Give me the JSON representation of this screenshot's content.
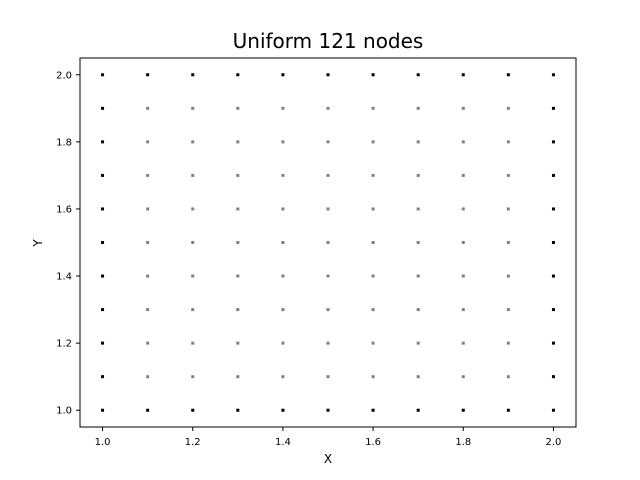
{
  "chart_data": {
    "type": "scatter",
    "title": "Uniform 121 nodes",
    "xlabel": "X",
    "ylabel": "Y",
    "xlim": [
      0.95,
      2.05
    ],
    "ylim": [
      0.95,
      2.05
    ],
    "x_ticks": [
      "1.0",
      "1.2",
      "1.4",
      "1.6",
      "1.8",
      "2.0"
    ],
    "y_ticks": [
      "1.0",
      "1.2",
      "1.4",
      "1.6",
      "1.8",
      "2.0"
    ],
    "grid": false,
    "series": [
      {
        "role": "boundary",
        "color": "#000000",
        "x": [
          1.0,
          1.1,
          1.2,
          1.3,
          1.4,
          1.5,
          1.6,
          1.7,
          1.8,
          1.9,
          2.0,
          1.0,
          1.1,
          1.2,
          1.3,
          1.4,
          1.5,
          1.6,
          1.7,
          1.8,
          1.9,
          2.0,
          1.0,
          1.0,
          1.0,
          1.0,
          1.0,
          1.0,
          1.0,
          1.0,
          1.0,
          2.0,
          2.0,
          2.0,
          2.0,
          2.0,
          2.0,
          2.0,
          2.0,
          2.0
        ],
        "y": [
          1.0,
          1.0,
          1.0,
          1.0,
          1.0,
          1.0,
          1.0,
          1.0,
          1.0,
          1.0,
          1.0,
          2.0,
          2.0,
          2.0,
          2.0,
          2.0,
          2.0,
          2.0,
          2.0,
          2.0,
          2.0,
          2.0,
          1.1,
          1.2,
          1.3,
          1.4,
          1.5,
          1.6,
          1.7,
          1.8,
          1.9,
          1.1,
          1.2,
          1.3,
          1.4,
          1.5,
          1.6,
          1.7,
          1.8,
          1.9
        ]
      },
      {
        "role": "interior",
        "color": "#808080",
        "grid_x": [
          1.1,
          1.2,
          1.3,
          1.4,
          1.5,
          1.6,
          1.7,
          1.8,
          1.9
        ],
        "grid_y": [
          1.1,
          1.2,
          1.3,
          1.4,
          1.5,
          1.6,
          1.7,
          1.8,
          1.9
        ]
      }
    ]
  }
}
